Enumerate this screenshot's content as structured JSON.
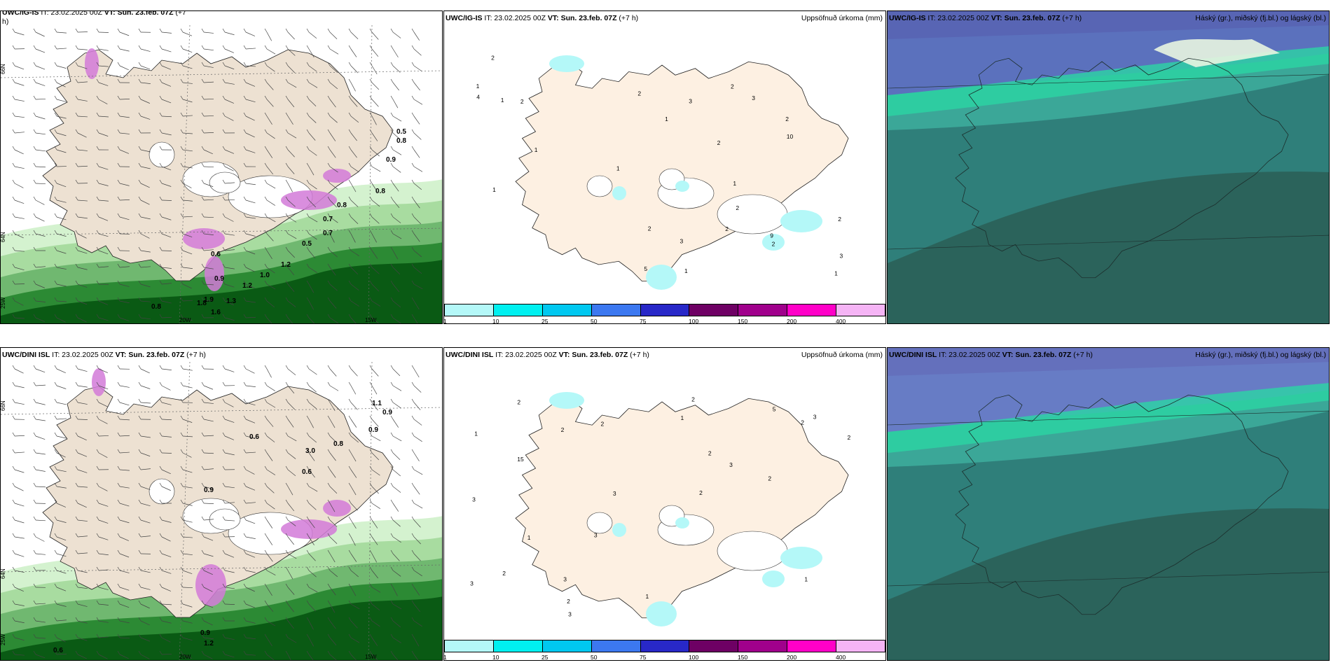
{
  "rows": [
    {
      "wind": {
        "left_hdr": "UWC/IG-IS",
        "mid_hdr": " IT: 23.02.2025 00Z ",
        "vt_hdr": "VT: Sun. 23.feb. 07Z",
        "tail_hdr": " (+7",
        "tail2": "h)"
      },
      "precip": {
        "model": "UWC/IG-IS",
        "it": " IT: 23.02.2025 00Z ",
        "vt": "VT: Sun. 23.feb. 07Z",
        "lead": " (+7 h)",
        "title": "Uppsöfnuð úrkoma (mm)"
      },
      "cloud": {
        "model": "UWC/IG-IS",
        "it": " IT: 23.02.2025 00Z ",
        "vt": "VT: Sun. 23.feb. 07Z",
        "lead": " (+7 h)",
        "title": "Háský (gr.), miðský (fj.bl.) og lágský (bl.)"
      },
      "precip_labels": [
        "1",
        "2",
        "1",
        "2",
        "5",
        "2",
        "1",
        "2",
        "1",
        "1",
        "9",
        "3",
        "1",
        "1",
        "3",
        "3",
        "2",
        "2",
        "3",
        "2",
        "4",
        "2",
        "2",
        "1",
        "10",
        "2",
        "2",
        "1"
      ],
      "wind_labels": [
        "0.5",
        "0.8",
        "0.9",
        "0.8",
        "0.7",
        "0.5",
        "0.6",
        "0.9",
        "1.2",
        "1.0",
        "1.2",
        "1.9",
        "1.3",
        "1.8",
        "1.6",
        "0.8",
        "0.7",
        "0.8"
      ]
    },
    {
      "wind": {
        "left_hdr": "UWC/DINI ISL",
        "mid_hdr": " IT: 23.02.2025 00Z ",
        "vt_hdr": "VT: Sun. 23.feb. 07Z",
        "tail_hdr": " (+7 h)",
        "tail2": ""
      },
      "precip": {
        "model": "UWC/DINI ISL",
        "it": " IT: 23.02.2025 00Z ",
        "vt": "VT: Sun. 23.feb. 07Z",
        "lead": " (+7 h)",
        "title": "Uppsöfnuð úrkoma (mm)"
      },
      "cloud": {
        "model": "UWC/DINI ISL",
        "it": " IT: 23.02.2025 00Z ",
        "vt": "VT: Sun. 23.feb. 07Z",
        "lead": " (+7 h)",
        "title": "Háský (gr.), miðský (fj.bl.) og lágský (bl.)"
      },
      "precip_labels": [
        "1",
        "2",
        "2",
        "2",
        "2",
        "1",
        "2",
        "3",
        "2",
        "2",
        "3",
        "2",
        "3",
        "3",
        "5",
        "2",
        "3",
        "3",
        "2",
        "1",
        "15",
        "2",
        "1",
        "1",
        "3",
        "3"
      ],
      "wind_labels": [
        "1.1",
        "0.9",
        "0.9",
        "0.8",
        "0.6",
        "0.6",
        "3.0",
        "0.9",
        "1.2",
        "0.9",
        "0.6"
      ]
    }
  ],
  "axis_labels": {
    "lat_66": "66N",
    "lat_64": "64N",
    "lon_20w": "20W",
    "lon_15w": "15W",
    "lon_25w": "25W"
  },
  "colorbar": {
    "colors": [
      "#b4f8f8",
      "#00f0f0",
      "#00c8f0",
      "#3c78f0",
      "#2828c8",
      "#6e0064",
      "#a0008c",
      "#ff00c8",
      "#f5b4f5"
    ],
    "ticks": [
      "1",
      "10",
      "25",
      "50",
      "75",
      "100",
      "150",
      "200",
      "400"
    ]
  }
}
